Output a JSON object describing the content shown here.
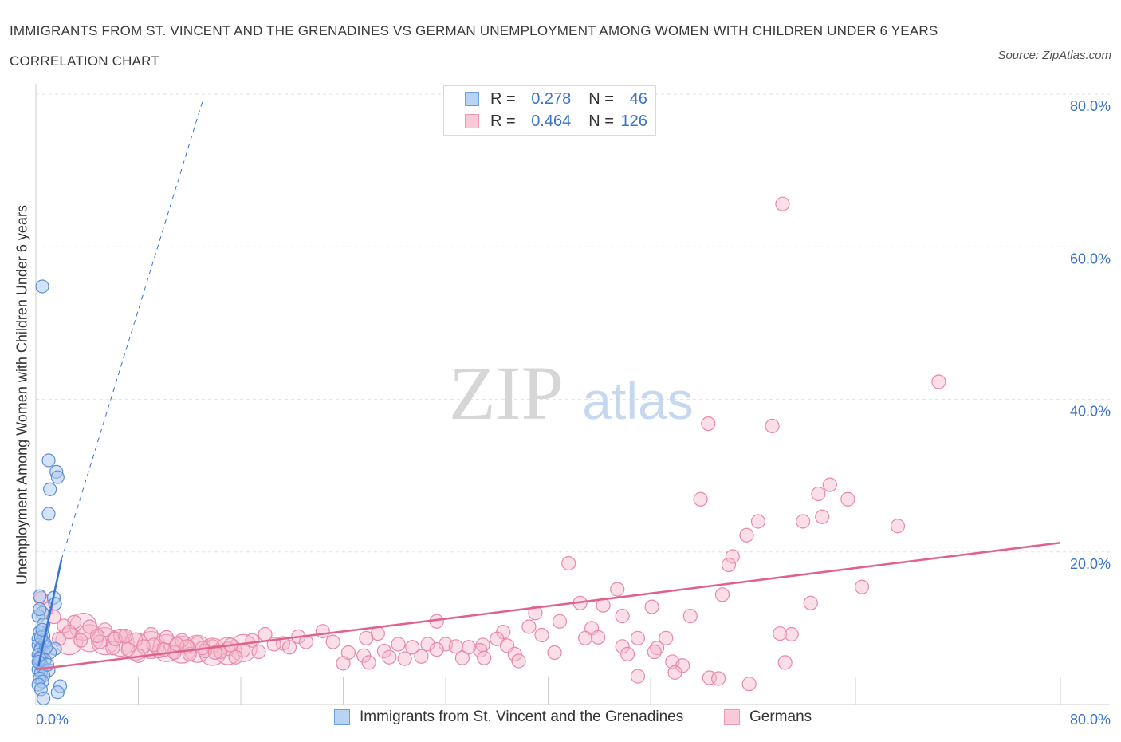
{
  "header": {
    "title": "IMMIGRANTS FROM ST. VINCENT AND THE GRENADINES VS GERMAN UNEMPLOYMENT AMONG WOMEN WITH CHILDREN UNDER 6 YEARS CORRELATION CHART",
    "source": "Source: ZipAtlas.com"
  },
  "watermark": {
    "zip": "ZIP",
    "atlas": "atlas"
  },
  "legend": {
    "rows": [
      {
        "r_label": "R =",
        "r_value": "0.278",
        "n_label": "N =",
        "n_value": "46"
      },
      {
        "r_label": "R =",
        "r_value": "0.464",
        "n_label": "N =",
        "n_value": "126"
      }
    ]
  },
  "bottom_legend": {
    "series1": "Immigrants from St. Vincent and the Grenadines",
    "series2": "Germans"
  },
  "colors": {
    "blue_fill": "#a9c8f0",
    "blue_stroke": "#5b8fd6",
    "blue_line": "#3a72d0",
    "pink_fill": "#f5b8cb",
    "pink_stroke": "#e889a7",
    "pink_line": "#e0628b",
    "axis_label": "#3b73c8",
    "grid": "#e3e3e3"
  },
  "chart_data": {
    "type": "scatter",
    "title": "IMMIGRANTS FROM ST. VINCENT AND THE GRENADINES VS GERMAN UNEMPLOYMENT AMONG WOMEN WITH CHILDREN UNDER 6 YEARS CORRELATION CHART",
    "xlabel": "",
    "ylabel": "Unemployment Among Women with Children Under 6 years",
    "xlim": [
      0,
      80
    ],
    "ylim": [
      0,
      80
    ],
    "x_tick_labels": [
      "0.0%",
      "80.0%"
    ],
    "y_tick_labels": [
      "20.0%",
      "40.0%",
      "60.0%",
      "80.0%"
    ],
    "y_ticks": [
      20,
      40,
      60,
      80
    ],
    "grid": true,
    "legend_position": "top-center",
    "series": [
      {
        "name": "Immigrants from St. Vincent and the Grenadines",
        "color": "blue",
        "R": 0.278,
        "N": 46,
        "trend": {
          "x": [
            0.2,
            2.0
          ],
          "y": [
            5.0,
            19.0
          ],
          "dashed_extension_to": [
            13.0,
            79.0
          ]
        },
        "points": [
          [
            0.5,
            54.8
          ],
          [
            1.0,
            32.0
          ],
          [
            1.6,
            30.5
          ],
          [
            1.7,
            29.8
          ],
          [
            1.1,
            28.2
          ],
          [
            1.0,
            25.0
          ],
          [
            1.4,
            14.0
          ],
          [
            1.5,
            13.2
          ],
          [
            0.3,
            14.2
          ],
          [
            0.5,
            12.0
          ],
          [
            0.2,
            11.6
          ],
          [
            0.6,
            10.5
          ],
          [
            0.3,
            9.5
          ],
          [
            0.6,
            9.0
          ],
          [
            0.2,
            8.6
          ],
          [
            0.5,
            8.3
          ],
          [
            0.7,
            8.0
          ],
          [
            0.2,
            7.8
          ],
          [
            0.4,
            7.4
          ],
          [
            1.5,
            7.3
          ],
          [
            0.3,
            7.0
          ],
          [
            0.6,
            6.8
          ],
          [
            1.1,
            6.8
          ],
          [
            0.2,
            6.5
          ],
          [
            0.4,
            6.2
          ],
          [
            0.7,
            5.8
          ],
          [
            0.3,
            5.4
          ],
          [
            0.5,
            5.0
          ],
          [
            0.2,
            4.6
          ],
          [
            1.0,
            4.5
          ],
          [
            0.4,
            4.2
          ],
          [
            0.6,
            3.8
          ],
          [
            0.3,
            3.4
          ],
          [
            0.5,
            3.0
          ],
          [
            0.2,
            2.6
          ],
          [
            1.9,
            2.4
          ],
          [
            0.4,
            2.0
          ],
          [
            1.7,
            1.6
          ],
          [
            0.6,
            0.8
          ],
          [
            0.3,
            6.0
          ],
          [
            0.8,
            7.5
          ],
          [
            0.4,
            8.8
          ],
          [
            0.2,
            5.6
          ],
          [
            0.9,
            5.2
          ],
          [
            0.5,
            9.8
          ],
          [
            0.3,
            12.5
          ]
        ]
      },
      {
        "name": "Germans",
        "color": "pink",
        "R": 0.464,
        "N": 126,
        "trend": {
          "x": [
            0,
            80
          ],
          "y": [
            4.6,
            21.2
          ]
        },
        "points": [
          [
            58.3,
            65.6
          ],
          [
            70.5,
            42.3
          ],
          [
            52.5,
            36.8
          ],
          [
            57.5,
            36.5
          ],
          [
            62.0,
            28.8
          ],
          [
            61.1,
            27.6
          ],
          [
            63.4,
            26.9
          ],
          [
            51.9,
            26.9
          ],
          [
            59.9,
            24.0
          ],
          [
            61.4,
            24.6
          ],
          [
            56.4,
            24.0
          ],
          [
            67.3,
            23.4
          ],
          [
            55.5,
            22.2
          ],
          [
            54.4,
            19.4
          ],
          [
            54.1,
            18.3
          ],
          [
            41.6,
            18.5
          ],
          [
            64.5,
            15.4
          ],
          [
            53.6,
            14.4
          ],
          [
            45.4,
            15.1
          ],
          [
            42.5,
            13.3
          ],
          [
            44.3,
            13.0
          ],
          [
            48.1,
            12.8
          ],
          [
            60.5,
            13.3
          ],
          [
            39.0,
            12.0
          ],
          [
            45.8,
            11.6
          ],
          [
            51.1,
            11.6
          ],
          [
            38.5,
            10.2
          ],
          [
            31.3,
            10.9
          ],
          [
            40.9,
            10.9
          ],
          [
            43.4,
            10.0
          ],
          [
            36.5,
            9.5
          ],
          [
            39.5,
            9.1
          ],
          [
            58.1,
            9.3
          ],
          [
            59.0,
            9.2
          ],
          [
            47.0,
            8.7
          ],
          [
            49.2,
            8.7
          ],
          [
            42.9,
            8.7
          ],
          [
            43.9,
            8.8
          ],
          [
            22.4,
            9.6
          ],
          [
            26.7,
            9.3
          ],
          [
            17.9,
            9.2
          ],
          [
            20.5,
            8.9
          ],
          [
            25.8,
            8.7
          ],
          [
            36.0,
            8.6
          ],
          [
            21.1,
            8.2
          ],
          [
            23.2,
            8.2
          ],
          [
            19.3,
            8.0
          ],
          [
            16.9,
            8.4
          ],
          [
            32.0,
            7.9
          ],
          [
            28.3,
            7.9
          ],
          [
            30.6,
            7.9
          ],
          [
            34.9,
            7.8
          ],
          [
            36.8,
            7.7
          ],
          [
            34.7,
            7.1
          ],
          [
            37.4,
            6.6
          ],
          [
            40.5,
            6.8
          ],
          [
            45.8,
            7.6
          ],
          [
            48.5,
            7.4
          ],
          [
            46.2,
            6.6
          ],
          [
            48.3,
            6.9
          ],
          [
            27.2,
            7.0
          ],
          [
            29.4,
            7.5
          ],
          [
            31.3,
            7.2
          ],
          [
            32.8,
            7.6
          ],
          [
            33.8,
            7.5
          ],
          [
            24.4,
            6.8
          ],
          [
            25.6,
            6.4
          ],
          [
            27.6,
            6.2
          ],
          [
            28.8,
            6.0
          ],
          [
            30.1,
            6.3
          ],
          [
            33.3,
            6.1
          ],
          [
            35.0,
            6.1
          ],
          [
            37.7,
            5.7
          ],
          [
            24.0,
            5.4
          ],
          [
            26.0,
            5.5
          ],
          [
            49.7,
            5.6
          ],
          [
            50.5,
            5.1
          ],
          [
            58.5,
            5.5
          ],
          [
            49.9,
            4.2
          ],
          [
            52.6,
            3.5
          ],
          [
            53.3,
            3.4
          ],
          [
            47.0,
            3.7
          ],
          [
            55.7,
            2.7
          ],
          [
            9.0,
            9.2
          ],
          [
            10.2,
            8.8
          ],
          [
            11.4,
            8.4
          ],
          [
            12.6,
            8.0
          ],
          [
            13.8,
            7.6
          ],
          [
            15.0,
            7.3
          ],
          [
            16.2,
            7.1
          ],
          [
            17.4,
            6.9
          ],
          [
            7.8,
            8.5
          ],
          [
            6.6,
            9.0
          ],
          [
            5.4,
            9.8
          ],
          [
            4.2,
            10.2
          ],
          [
            3.0,
            10.8
          ],
          [
            2.2,
            10.3
          ],
          [
            1.4,
            11.5
          ],
          [
            0.8,
            12.5
          ],
          [
            0.4,
            13.9
          ],
          [
            3.5,
            8.4
          ],
          [
            5.0,
            8.2
          ],
          [
            6.0,
            7.4
          ],
          [
            7.2,
            7.2
          ],
          [
            8.4,
            7.6
          ],
          [
            9.6,
            7.0
          ],
          [
            10.8,
            6.8
          ],
          [
            12.0,
            6.6
          ],
          [
            13.2,
            7.0
          ],
          [
            14.4,
            6.9
          ],
          [
            15.6,
            6.2
          ],
          [
            18.6,
            7.9
          ],
          [
            19.8,
            7.5
          ],
          [
            8.0,
            6.4
          ],
          [
            9.2,
            7.8
          ],
          [
            10.0,
            7.2
          ],
          [
            11.8,
            7.6
          ],
          [
            13.0,
            7.4
          ],
          [
            14.0,
            6.8
          ],
          [
            15.2,
            7.8
          ],
          [
            4.8,
            9.0
          ],
          [
            6.2,
            8.6
          ],
          [
            7.0,
            9.0
          ],
          [
            2.6,
            9.5
          ],
          [
            1.8,
            8.6
          ],
          [
            11.0,
            7.9
          ]
        ],
        "large_points": [
          [
            2.6,
            8.3
          ],
          [
            3.7,
            10.2
          ],
          [
            4.2,
            8.7
          ],
          [
            5.4,
            8.3
          ],
          [
            6.6,
            8.1
          ],
          [
            7.8,
            7.6
          ],
          [
            9.0,
            7.8
          ],
          [
            10.2,
            7.4
          ],
          [
            11.4,
            7.2
          ],
          [
            12.6,
            7.3
          ],
          [
            13.8,
            6.9
          ],
          [
            15.0,
            7.0
          ],
          [
            16.2,
            7.4
          ]
        ]
      }
    ]
  }
}
